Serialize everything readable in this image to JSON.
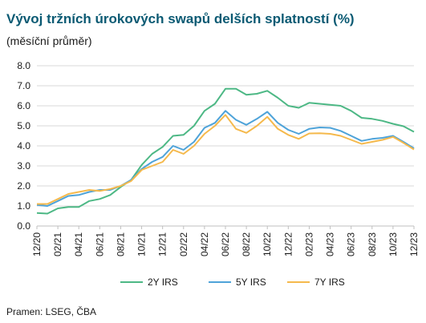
{
  "title": "Vývoj tržních úrokových swapů delších splatností (%)",
  "subtitle": "(měsíční průměr)",
  "source": "Pramen: LSEG, ČBA",
  "chart_data": {
    "type": "line",
    "x_ticks": [
      "12/20",
      "02/21",
      "04/21",
      "06/21",
      "08/21",
      "10/21",
      "12/21",
      "02/22",
      "04/22",
      "06/22",
      "08/22",
      "10/22",
      "12/22",
      "02/23",
      "04/23",
      "06/23",
      "08/23",
      "10/23",
      "12/23"
    ],
    "y_ticks": [
      "0.0",
      "1.0",
      "2.0",
      "3.0",
      "4.0",
      "5.0",
      "6.0",
      "7.0",
      "8.0"
    ],
    "ylim": [
      0,
      8
    ],
    "grid": "horizontal",
    "legend_position": "bottom",
    "x": [
      "12/20",
      "01/21",
      "02/21",
      "03/21",
      "04/21",
      "05/21",
      "06/21",
      "07/21",
      "08/21",
      "09/21",
      "10/21",
      "11/21",
      "12/21",
      "01/22",
      "02/22",
      "03/22",
      "04/22",
      "05/22",
      "06/22",
      "07/22",
      "08/22",
      "09/22",
      "10/22",
      "11/22",
      "12/22",
      "01/23",
      "02/23",
      "03/23",
      "04/23",
      "05/23",
      "06/23",
      "07/23",
      "08/23",
      "09/23",
      "10/23",
      "11/23",
      "12/23"
    ],
    "series": [
      {
        "name": "2Y IRS",
        "color": "#4db885",
        "values": [
          0.65,
          0.62,
          0.88,
          0.95,
          0.95,
          1.25,
          1.35,
          1.55,
          1.95,
          2.3,
          3.05,
          3.6,
          3.95,
          4.5,
          4.55,
          5.0,
          5.75,
          6.1,
          6.85,
          6.85,
          6.55,
          6.6,
          6.75,
          6.4,
          6.0,
          5.9,
          6.15,
          6.1,
          6.05,
          6.0,
          5.75,
          5.4,
          5.35,
          5.25,
          5.1,
          4.98,
          4.7
        ]
      },
      {
        "name": "5Y IRS",
        "color": "#4ea3d9",
        "values": [
          1.05,
          1.0,
          1.25,
          1.5,
          1.55,
          1.7,
          1.8,
          1.8,
          2.0,
          2.3,
          2.85,
          3.2,
          3.45,
          4.0,
          3.8,
          4.2,
          4.9,
          5.15,
          5.75,
          5.3,
          5.05,
          5.35,
          5.7,
          5.15,
          4.8,
          4.6,
          4.85,
          4.92,
          4.9,
          4.75,
          4.5,
          4.25,
          4.35,
          4.4,
          4.5,
          4.2,
          3.88
        ]
      },
      {
        "name": "7Y IRS",
        "color": "#f5b94c",
        "values": [
          1.1,
          1.1,
          1.35,
          1.6,
          1.7,
          1.8,
          1.75,
          1.85,
          2.0,
          2.25,
          2.8,
          3.0,
          3.2,
          3.8,
          3.6,
          4.0,
          4.6,
          5.0,
          5.55,
          4.85,
          4.65,
          5.0,
          5.45,
          4.85,
          4.55,
          4.35,
          4.62,
          4.63,
          4.6,
          4.5,
          4.3,
          4.1,
          4.2,
          4.3,
          4.45,
          4.15,
          3.82
        ]
      }
    ]
  }
}
